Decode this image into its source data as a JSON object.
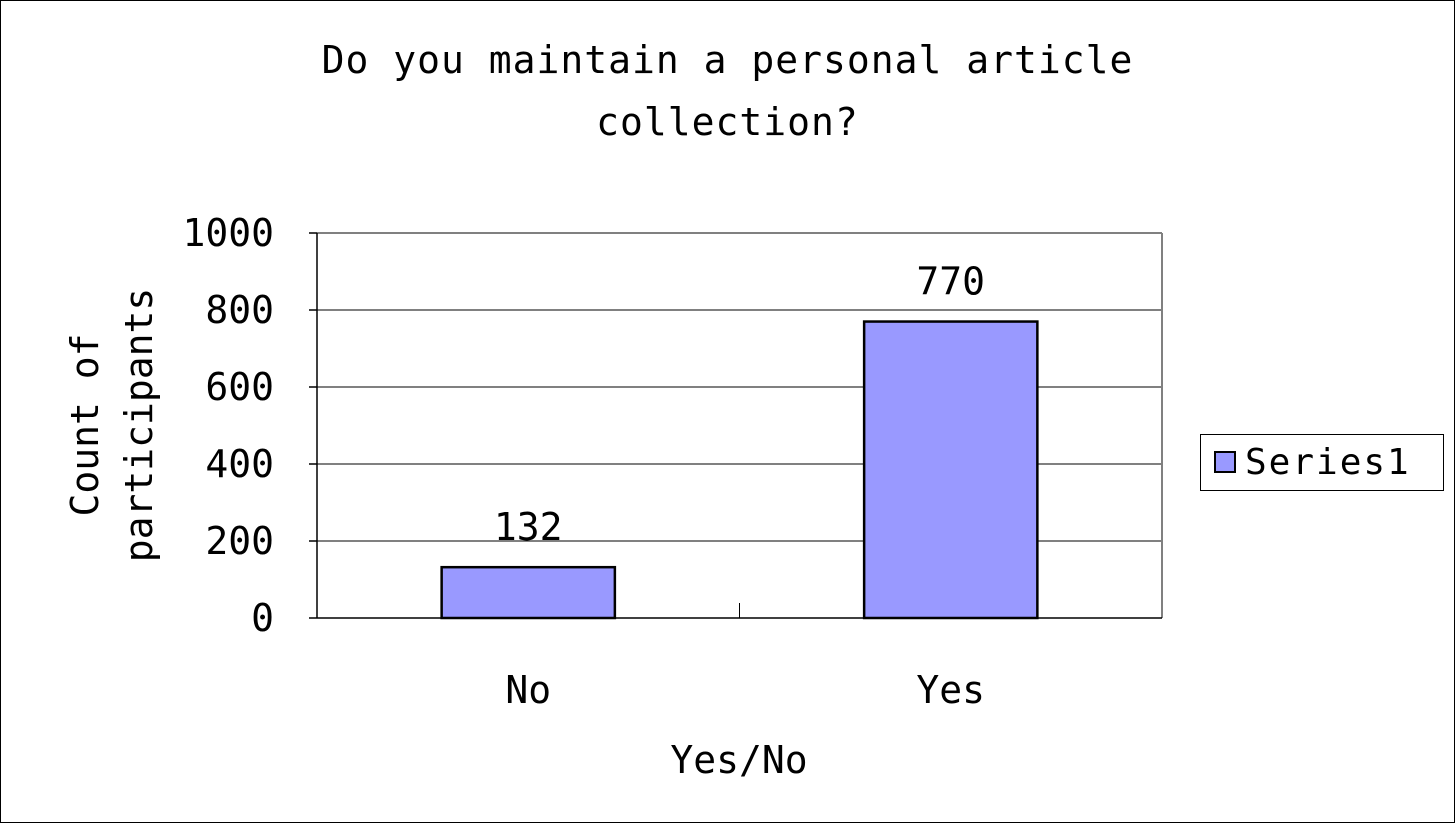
{
  "chart_data": {
    "type": "bar",
    "title": "Do you maintain a personal article collection?",
    "title_lines": [
      "Do you maintain a personal article",
      "collection?"
    ],
    "xlabel": "Yes/No",
    "ylabel_lines": [
      "Count of",
      "participants"
    ],
    "categories": [
      "No",
      "Yes"
    ],
    "series": [
      {
        "name": "Series1",
        "values": [
          132,
          770
        ]
      }
    ],
    "data_labels": [
      "132",
      "770"
    ],
    "ylim": [
      0,
      1000
    ],
    "yticks": [
      "0",
      "200",
      "400",
      "600",
      "800",
      "1000"
    ],
    "ytick_values": [
      0,
      200,
      400,
      600,
      800,
      1000
    ],
    "grid": true,
    "legend_position": "right",
    "colors": {
      "bar": "#9999ff",
      "plot_border": "#808080",
      "grid": "#000000",
      "background": "#ffffff"
    }
  }
}
